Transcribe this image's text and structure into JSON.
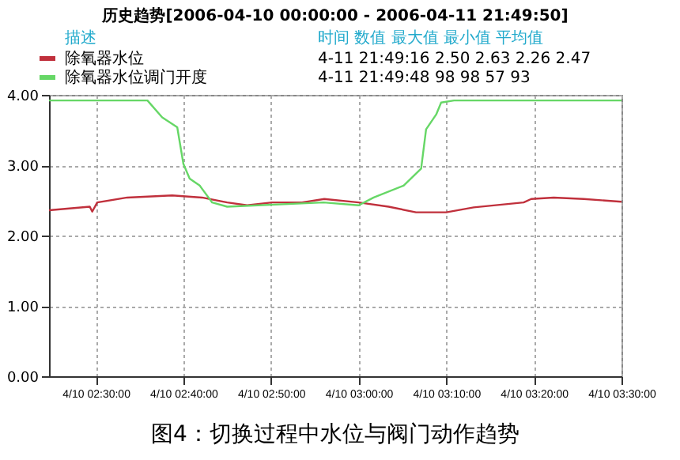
{
  "chart_data": {
    "type": "line",
    "title": "历史趋势[2006-04-10 00:00:00 - 2006-04-11 21:49:50]",
    "annotations": [
      "描述",
      "时间  数值  最大值  最小值  平均值",
      "4-11 21:49:16   2.50   2.63   2.26   2.47",
      "4-11 21:49:48   98   98   57   93",
      "图4：切换过程中水位与阀门动作趋势"
    ],
    "series": [
      {
        "name": "除氧器水位",
        "color": "#c0303c",
        "x": [
          "2006-04-10T02:24:40",
          "2006-04-10T02:29:19",
          "2006-04-10T02:29:36",
          "2006-04-10T02:30:10",
          "2006-04-10T02:33:35",
          "2006-04-10T02:38:43",
          "2006-04-10T02:42:08",
          "2006-04-10T02:45:00",
          "2006-04-10T02:47:17",
          "2006-04-10T02:50:07",
          "2006-04-10T02:53:32",
          "2006-04-10T02:56:05",
          "2006-04-10T03:00:00",
          "2006-04-10T03:03:25",
          "2006-04-10T03:06:33",
          "2006-04-10T03:10:00",
          "2006-04-10T03:13:08",
          "2006-04-10T03:18:50",
          "2006-04-10T03:19:42",
          "2006-04-10T03:22:16",
          "2006-04-10T03:25:41",
          "2006-04-10T03:30:00"
        ],
        "values": [
          2.36,
          2.41,
          2.34,
          2.47,
          2.54,
          2.57,
          2.54,
          2.47,
          2.43,
          2.47,
          2.47,
          2.52,
          2.47,
          2.41,
          2.33,
          2.33,
          2.4,
          2.47,
          2.52,
          2.54,
          2.52,
          2.48
        ]
      },
      {
        "name": "除氧器水位调门开度",
        "color": "#66d766",
        "x": [
          "2006-04-10T02:24:40",
          "2006-04-10T02:35:54",
          "2006-04-10T02:37:35",
          "2006-04-10T02:39:18",
          "2006-04-10T02:40:00",
          "2006-04-10T02:40:43",
          "2006-04-10T02:41:52",
          "2006-04-10T02:43:17",
          "2006-04-10T02:45:00",
          "2006-04-10T02:56:00",
          "2006-04-10T03:00:00",
          "2006-04-10T03:01:43",
          "2006-04-10T03:05:08",
          "2006-04-10T03:07:08",
          "2006-04-10T03:07:42",
          "2006-04-10T03:08:51",
          "2006-04-10T03:09:25",
          "2006-04-10T03:10:53",
          "2006-04-10T03:30:00"
        ],
        "values": [
          3.92,
          3.92,
          3.68,
          3.54,
          3.02,
          2.81,
          2.71,
          2.47,
          2.41,
          2.47,
          2.43,
          2.54,
          2.71,
          2.95,
          3.51,
          3.72,
          3.89,
          3.92,
          3.92
        ]
      }
    ],
    "xlim": [
      "2006-04-10T02:24:40",
      "2006-04-10T03:30:00"
    ],
    "xticks": [
      {
        "value": "2006-04-10T02:30:00",
        "label": "4/10 02:30:00"
      },
      {
        "value": "2006-04-10T02:40:00",
        "label": "4/10 02:40:00"
      },
      {
        "value": "2006-04-10T02:50:00",
        "label": "4/10 02:50:00"
      },
      {
        "value": "2006-04-10T03:00:00",
        "label": "4/10 03:00:00"
      },
      {
        "value": "2006-04-10T03:10:00",
        "label": "4/10 03:10:00"
      },
      {
        "value": "2006-04-10T03:20:00",
        "label": "4/10 03:20:00"
      },
      {
        "value": "2006-04-10T03:30:00",
        "label": "4/10 03:30:00"
      }
    ],
    "ylim": [
      0,
      4
    ],
    "yticks": [
      {
        "value": 0,
        "label": "0.00"
      },
      {
        "value": 1,
        "label": "1.00"
      },
      {
        "value": 2,
        "label": "2.00"
      },
      {
        "value": 3,
        "label": "3.00"
      },
      {
        "value": 4,
        "label": "4.00"
      }
    ],
    "grid": true,
    "legend": "top",
    "line_style": "solid",
    "marker": "none"
  }
}
